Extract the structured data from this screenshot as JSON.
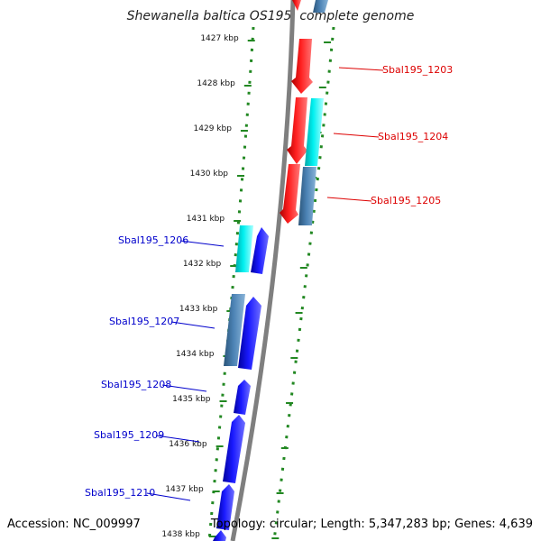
{
  "title": "Shewanella baltica OS195, complete genome",
  "footer": {
    "accession": "Accession: NC_009997",
    "summary": "Topology: circular; Length: 5,347,283 bp; Genes: 4,639"
  },
  "ticks": [
    {
      "label": "1427 kbp",
      "kbp": 1427
    },
    {
      "label": "1428 kbp",
      "kbp": 1428
    },
    {
      "label": "1429 kbp",
      "kbp": 1429
    },
    {
      "label": "1430 kbp",
      "kbp": 1430
    },
    {
      "label": "1431 kbp",
      "kbp": 1431
    },
    {
      "label": "1432 kbp",
      "kbp": 1432
    },
    {
      "label": "1433 kbp",
      "kbp": 1433
    },
    {
      "label": "1434 kbp",
      "kbp": 1434
    },
    {
      "label": "1435 kbp",
      "kbp": 1435
    },
    {
      "label": "1436 kbp",
      "kbp": 1436
    },
    {
      "label": "1437 kbp",
      "kbp": 1437
    },
    {
      "label": "1438 kbp",
      "kbp": 1438
    }
  ],
  "gene_labels": [
    {
      "name": "Sbal195_1203",
      "color": "#dd0000"
    },
    {
      "name": "Sbal195_1204",
      "color": "#dd0000"
    },
    {
      "name": "Sbal195_1205",
      "color": "#dd0000"
    },
    {
      "name": "Sbal195_1206",
      "color": "#0000cc"
    },
    {
      "name": "Sbal195_1207",
      "color": "#0000cc"
    },
    {
      "name": "Sbal195_1208",
      "color": "#0000cc"
    },
    {
      "name": "Sbal195_1209",
      "color": "#0000cc"
    },
    {
      "name": "Sbal195_1210",
      "color": "#0000cc"
    }
  ],
  "colors": {
    "forward_gene": "#ff0000",
    "reverse_gene": "#0000ff",
    "rna_like": "#00eeee",
    "pseudo_like": "#4a7fb0",
    "backbone": "#888888",
    "dotted_ring": "#228822"
  }
}
